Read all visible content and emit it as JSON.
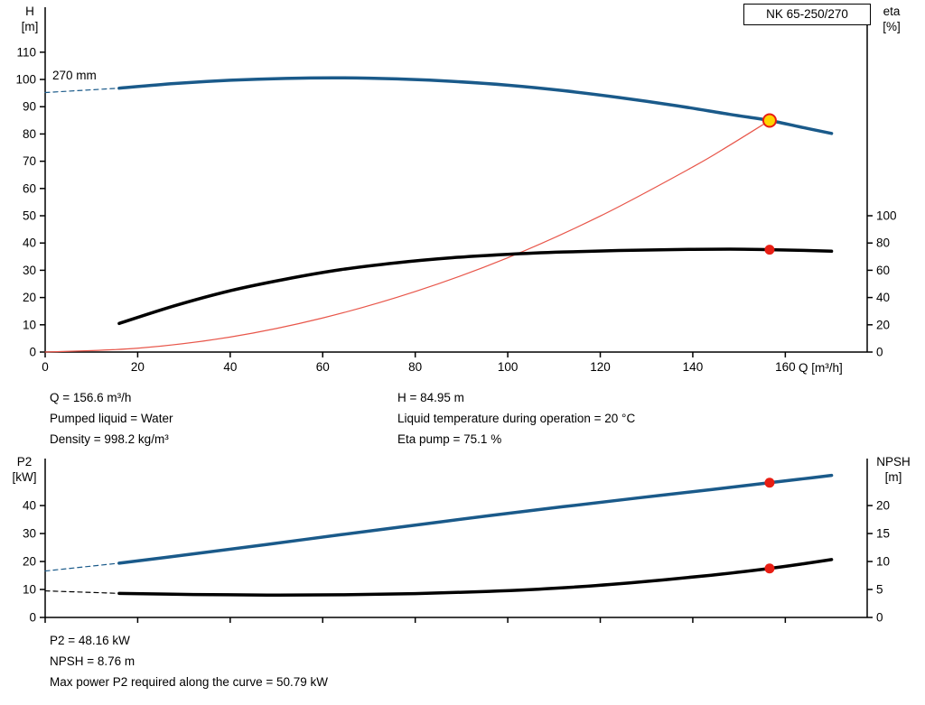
{
  "colors": {
    "background": "#ffffff",
    "axis": "#000000",
    "text": "#000000",
    "curve_blue": "#1a5a8a",
    "curve_black": "#000000",
    "curve_red": "#e8564a",
    "marker_red": "#e81e14",
    "marker_yellow": "#ffd400"
  },
  "annotations": {
    "impeller_diameter": "270 mm"
  },
  "operating_info": {
    "left": [
      "Q = 156.6 m³/h",
      "Pumped liquid = Water",
      "Density = 998.2 kg/m³"
    ],
    "right": [
      "H = 84.95 m",
      "Liquid temperature during operation = 20 °C",
      "Eta pump = 75.1 %"
    ]
  },
  "power_info": [
    "P2 = 48.16 kW",
    "NPSH = 8.76 m",
    "Max power P2 required along the curve = 50.79 kW"
  ],
  "chart_data": [
    {
      "type": "line",
      "title": "NK 65-250/270",
      "x_axis": {
        "label": "Q [m³/h]",
        "min": 0,
        "max": 177.7,
        "ticks": [
          0,
          20,
          40,
          60,
          80,
          100,
          120,
          140,
          160
        ],
        "show_labels": true
      },
      "y_left": {
        "label_line1": "H",
        "label_line2": "[m]",
        "min": 0,
        "max": 126.5,
        "ticks": [
          0,
          10,
          20,
          30,
          40,
          50,
          60,
          70,
          80,
          90,
          100,
          110
        ]
      },
      "y_right": {
        "label_line1": "eta",
        "label_line2": "[%]",
        "ticks": [
          0,
          20,
          40,
          60,
          80,
          100
        ],
        "scale_to_left": 0.5
      },
      "series": [
        {
          "name": "head-curve-extension",
          "axis": "left",
          "color_key": "curve_blue",
          "width": 1.2,
          "dashed": true,
          "points": [
            [
              0,
              95.2
            ],
            [
              16,
              96.8
            ]
          ]
        },
        {
          "name": "system-curve",
          "axis": "left",
          "color_key": "curve_red",
          "width": 1.2,
          "points": [
            [
              0,
              0
            ],
            [
              20,
              1.4
            ],
            [
              40,
              5.5
            ],
            [
              60,
              12.5
            ],
            [
              80,
              22.2
            ],
            [
              100,
              34.6
            ],
            [
              120,
              49.9
            ],
            [
              140,
              67.9
            ],
            [
              148,
              75.9
            ],
            [
              156.6,
              84.95
            ]
          ]
        },
        {
          "name": "head-curve",
          "axis": "left",
          "color_key": "curve_blue",
          "width": 3.5,
          "points": [
            [
              16,
              96.8
            ],
            [
              28,
              98.5
            ],
            [
              40,
              99.7
            ],
            [
              52,
              100.4
            ],
            [
              64,
              100.6
            ],
            [
              76,
              100.2
            ],
            [
              88,
              99.3
            ],
            [
              100,
              97.9
            ],
            [
              112,
              95.9
            ],
            [
              124,
              93.4
            ],
            [
              136,
              90.5
            ],
            [
              148,
              87.2
            ],
            [
              156.6,
              84.95
            ],
            [
              164,
              82.3
            ],
            [
              170,
              80.2
            ]
          ]
        },
        {
          "name": "efficiency-curve",
          "axis": "right",
          "color_key": "curve_black",
          "width": 3.5,
          "points": [
            [
              16,
              21
            ],
            [
              28,
              34
            ],
            [
              40,
              45
            ],
            [
              52,
              53.5
            ],
            [
              64,
              60.5
            ],
            [
              76,
              65.5
            ],
            [
              88,
              69.2
            ],
            [
              100,
              71.7
            ],
            [
              112,
              73.4
            ],
            [
              124,
              74.5
            ],
            [
              136,
              75.2
            ],
            [
              148,
              75.5
            ],
            [
              156.6,
              75.1
            ],
            [
              164,
              74.6
            ],
            [
              170,
              74.0
            ]
          ]
        }
      ],
      "markers": [
        {
          "name": "duty-point-head",
          "axis": "left",
          "q": 156.6,
          "value": 84.95,
          "fill": "marker_yellow",
          "stroke": "marker_red",
          "r": 7
        },
        {
          "name": "duty-point-eta",
          "axis": "right",
          "q": 156.6,
          "value": 75.1,
          "fill": "marker_red",
          "r": 5.5
        }
      ]
    },
    {
      "type": "line",
      "title": "",
      "x_axis": {
        "label": "",
        "min": 0,
        "max": 177.7,
        "ticks": [
          0,
          20,
          40,
          60,
          80,
          100,
          120,
          140,
          160
        ],
        "show_labels": false
      },
      "y_left": {
        "label_line1": "P2",
        "label_line2": "[kW]",
        "min": 0,
        "max": 56.8,
        "ticks": [
          0,
          10,
          20,
          30,
          40
        ]
      },
      "y_right": {
        "label_line1": "NPSH",
        "label_line2": "[m]",
        "ticks": [
          0,
          5,
          10,
          15,
          20
        ],
        "scale_to_left": 2.0
      },
      "series": [
        {
          "name": "p2-curve-extension",
          "axis": "left",
          "color_key": "curve_blue",
          "width": 1.2,
          "dashed": true,
          "points": [
            [
              0,
              16.6
            ],
            [
              16,
              19.4
            ]
          ]
        },
        {
          "name": "npsh-curve-extension",
          "axis": "right",
          "color_key": "curve_black",
          "width": 1.2,
          "dashed": true,
          "points": [
            [
              0,
              4.75
            ],
            [
              16,
              4.3
            ]
          ]
        },
        {
          "name": "p2-curve",
          "axis": "left",
          "color_key": "curve_blue",
          "width": 3.5,
          "points": [
            [
              16,
              19.4
            ],
            [
              32,
              22.7
            ],
            [
              48,
              26.1
            ],
            [
              64,
              29.6
            ],
            [
              80,
              33.0
            ],
            [
              96,
              36.4
            ],
            [
              112,
              39.6
            ],
            [
              128,
              42.7
            ],
            [
              144,
              45.7
            ],
            [
              156.6,
              48.16
            ],
            [
              164,
              49.6
            ],
            [
              170,
              50.79
            ]
          ]
        },
        {
          "name": "npsh-curve",
          "axis": "right",
          "color_key": "curve_black",
          "width": 3.5,
          "points": [
            [
              16,
              4.3
            ],
            [
              32,
              4.1
            ],
            [
              48,
              4.0
            ],
            [
              64,
              4.05
            ],
            [
              80,
              4.25
            ],
            [
              96,
              4.65
            ],
            [
              112,
              5.3
            ],
            [
              128,
              6.3
            ],
            [
              144,
              7.55
            ],
            [
              156.6,
              8.76
            ],
            [
              164,
              9.6
            ],
            [
              170,
              10.35
            ]
          ]
        }
      ],
      "markers": [
        {
          "name": "duty-point-p2",
          "axis": "left",
          "q": 156.6,
          "value": 48.16,
          "fill": "marker_red",
          "r": 5.5
        },
        {
          "name": "duty-point-npsh",
          "axis": "right",
          "q": 156.6,
          "value": 8.76,
          "fill": "marker_red",
          "r": 5.5
        }
      ]
    }
  ]
}
